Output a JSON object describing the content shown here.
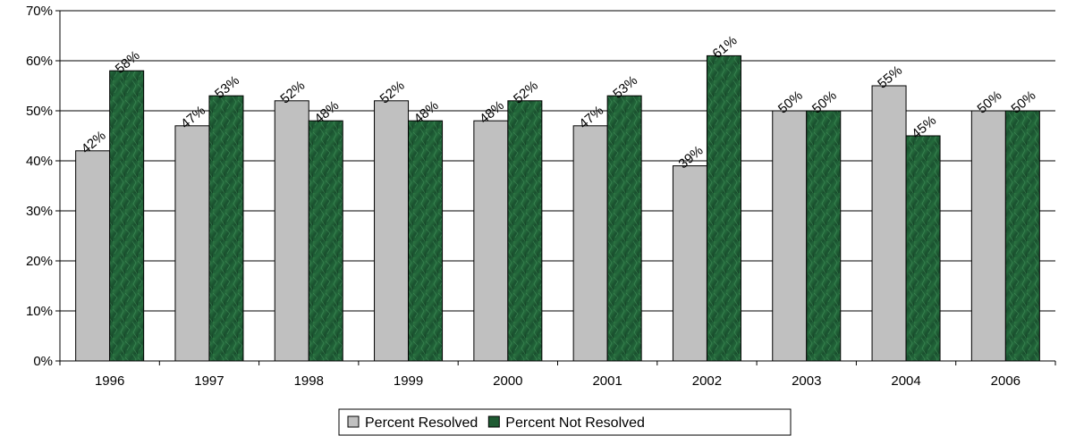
{
  "chart_data": {
    "type": "bar",
    "title": "",
    "xlabel": "",
    "ylabel": "",
    "categories": [
      "1996",
      "1997",
      "1998",
      "1999",
      "2000",
      "2001",
      "2002",
      "2003",
      "2004",
      "2006"
    ],
    "series": [
      {
        "name": "Percent Resolved",
        "color": "#c0c0c0",
        "values": [
          42,
          47,
          52,
          52,
          48,
          47,
          39,
          50,
          55,
          50
        ],
        "labels": [
          "42%",
          "47%",
          "52%",
          "52%",
          "48%",
          "47%",
          "39%",
          "50%",
          "55%",
          "50%"
        ]
      },
      {
        "name": "Percent Not Resolved",
        "color": "#1e5a32",
        "values": [
          58,
          53,
          48,
          48,
          52,
          53,
          61,
          50,
          45,
          50
        ],
        "labels": [
          "58%",
          "53%",
          "48%",
          "48%",
          "52%",
          "53%",
          "61%",
          "50%",
          "45%",
          "50%"
        ]
      }
    ],
    "ylim": [
      0,
      70
    ],
    "yticks": [
      0,
      10,
      20,
      30,
      40,
      50,
      60,
      70
    ],
    "ytick_labels": [
      "0%",
      "10%",
      "20%",
      "30%",
      "40%",
      "50%",
      "60%",
      "70%"
    ],
    "grid": true,
    "legend": "bottom-center",
    "data_label_rotation": "diagonal"
  }
}
